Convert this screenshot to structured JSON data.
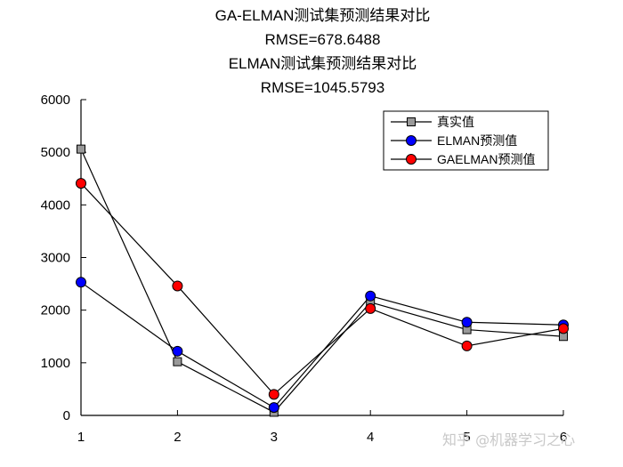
{
  "chart_data": {
    "type": "line",
    "title_lines": [
      "GA-ELMAN测试集预测结果对比",
      "RMSE=678.6488",
      "ELMAN测试集预测结果对比",
      "RMSE=1045.5793"
    ],
    "xlabel": "",
    "ylabel": "",
    "x": [
      1,
      2,
      3,
      4,
      5,
      6
    ],
    "xlim": [
      1,
      6
    ],
    "ylim": [
      0,
      6000
    ],
    "xticks": [
      1,
      2,
      3,
      4,
      5,
      6
    ],
    "yticks": [
      0,
      1000,
      2000,
      3000,
      4000,
      5000,
      6000
    ],
    "grid": false,
    "legend_position": "top-right",
    "series": [
      {
        "name": "真实值",
        "marker": "square",
        "color": "#999999",
        "values": [
          5060,
          1020,
          60,
          2150,
          1630,
          1500
        ]
      },
      {
        "name": "ELMAN预测值",
        "marker": "circle",
        "color": "#0000ff",
        "values": [
          2530,
          1220,
          150,
          2270,
          1770,
          1720
        ]
      },
      {
        "name": "GAELMAN预测值",
        "marker": "circle",
        "color": "#ff0000",
        "values": [
          4410,
          2460,
          400,
          2030,
          1320,
          1650
        ]
      }
    ]
  },
  "watermark": "知乎 @机器学习之心"
}
